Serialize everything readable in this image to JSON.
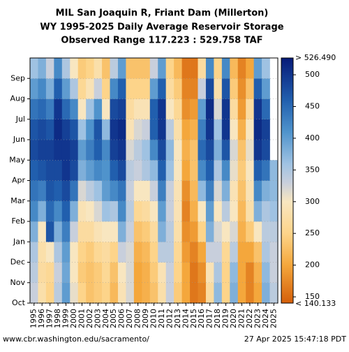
{
  "chart_data": {
    "type": "heatmap",
    "title": [
      "MIL San Joaquin R, Friant Dam (Millerton)",
      "WY 1995-2025 Daily Average Reservoir Storage",
      "Observed Range 117.223 : 529.758 TAF"
    ],
    "categories": [
      "1995",
      "1996",
      "1997",
      "1998",
      "1999",
      "2000",
      "2001",
      "2002",
      "2003",
      "2004",
      "2005",
      "2006",
      "2007",
      "2008",
      "2009",
      "2010",
      "2011",
      "2012",
      "2013",
      "2014",
      "2015",
      "2016",
      "2017",
      "2018",
      "2019",
      "2020",
      "2021",
      "2022",
      "2023",
      "2024",
      "2025"
    ],
    "months": [
      "Oct",
      "Nov",
      "Dec",
      "Jan",
      "Feb",
      "Mar",
      "Apr",
      "May",
      "Jun",
      "Jul",
      "Aug",
      "Sep"
    ],
    "values": [
      [
        330,
        340,
        350,
        380,
        420,
        440,
        460,
        480,
        470,
        440,
        400,
        360
      ],
      [
        280,
        270,
        280,
        300,
        380,
        430,
        470,
        490,
        480,
        450,
        420,
        380
      ],
      [
        250,
        260,
        300,
        470,
        450,
        470,
        480,
        490,
        470,
        430,
        380,
        330
      ],
      [
        340,
        330,
        350,
        380,
        420,
        460,
        480,
        500,
        510,
        500,
        460,
        420
      ],
      [
        400,
        390,
        400,
        430,
        460,
        480,
        500,
        500,
        490,
        450,
        400,
        350
      ],
      [
        310,
        300,
        300,
        330,
        380,
        440,
        480,
        490,
        470,
        420,
        350,
        300
      ],
      [
        250,
        240,
        250,
        270,
        290,
        320,
        380,
        400,
        360,
        300,
        260,
        240
      ],
      [
        230,
        230,
        240,
        270,
        300,
        340,
        400,
        430,
        410,
        360,
        290,
        250
      ],
      [
        240,
        240,
        260,
        290,
        320,
        360,
        420,
        460,
        470,
        410,
        330,
        280
      ],
      [
        250,
        260,
        270,
        300,
        360,
        400,
        410,
        420,
        370,
        300,
        250,
        230
      ],
      [
        220,
        230,
        250,
        300,
        350,
        420,
        460,
        490,
        500,
        480,
        420,
        340
      ],
      [
        290,
        300,
        330,
        380,
        420,
        440,
        480,
        500,
        510,
        490,
        460,
        400
      ],
      [
        320,
        320,
        320,
        330,
        340,
        330,
        340,
        320,
        290,
        270,
        250,
        230
      ],
      [
        200,
        200,
        210,
        230,
        260,
        300,
        330,
        340,
        320,
        290,
        250,
        230
      ],
      [
        210,
        210,
        220,
        240,
        270,
        300,
        350,
        360,
        330,
        290,
        250,
        230
      ],
      [
        230,
        240,
        250,
        270,
        300,
        330,
        370,
        420,
        460,
        460,
        400,
        330
      ],
      [
        280,
        290,
        340,
        380,
        400,
        430,
        460,
        480,
        500,
        500,
        460,
        400
      ],
      [
        330,
        330,
        340,
        340,
        330,
        330,
        360,
        370,
        340,
        300,
        270,
        250
      ],
      [
        240,
        250,
        260,
        280,
        290,
        290,
        300,
        300,
        280,
        260,
        240,
        220
      ],
      [
        200,
        200,
        190,
        180,
        170,
        180,
        200,
        210,
        200,
        180,
        170,
        160
      ],
      [
        160,
        160,
        170,
        190,
        210,
        220,
        230,
        230,
        210,
        190,
        170,
        160
      ],
      [
        170,
        180,
        200,
        250,
        300,
        370,
        420,
        450,
        430,
        400,
        330,
        270
      ],
      [
        270,
        290,
        330,
        380,
        400,
        430,
        460,
        480,
        500,
        510,
        480,
        420
      ],
      [
        370,
        350,
        330,
        320,
        300,
        320,
        350,
        380,
        360,
        320,
        280,
        250
      ],
      [
        250,
        250,
        260,
        300,
        340,
        380,
        420,
        470,
        500,
        500,
        470,
        420
      ],
      [
        380,
        370,
        340,
        320,
        300,
        290,
        310,
        320,
        300,
        270,
        240,
        220
      ],
      [
        200,
        200,
        200,
        210,
        220,
        230,
        240,
        230,
        210,
        190,
        180,
        170
      ],
      [
        170,
        170,
        200,
        240,
        280,
        290,
        300,
        310,
        300,
        270,
        230,
        200
      ],
      [
        200,
        210,
        230,
        300,
        380,
        420,
        460,
        500,
        510,
        500,
        460,
        400
      ],
      [
        380,
        370,
        350,
        340,
        350,
        380,
        440,
        480,
        490,
        450,
        400,
        360
      ],
      [
        340,
        330,
        330,
        340,
        360,
        370,
        370,
        null,
        null,
        null,
        null,
        null
      ]
    ],
    "clim": [
      140.133,
      526.49
    ],
    "cticks": [
      150,
      200,
      250,
      300,
      350,
      400,
      450,
      500
    ],
    "cmax_label": "> 526.490",
    "cmin_label": "< 140.133",
    "colorscale": [
      {
        "value": 140.133,
        "color": "#d45f0a"
      },
      {
        "value": 200,
        "color": "#f4a73c"
      },
      {
        "value": 250,
        "color": "#fdd48a"
      },
      {
        "value": 300,
        "color": "#f8e6c0"
      },
      {
        "value": 330,
        "color": "#c8cfdc"
      },
      {
        "value": 360,
        "color": "#9fc2e2"
      },
      {
        "value": 410,
        "color": "#4f93cc"
      },
      {
        "value": 460,
        "color": "#215fae"
      },
      {
        "value": 526.49,
        "color": "#061a78"
      }
    ],
    "source": "www.cbr.washington.edu/sacramento/",
    "timestamp": "27 Apr 2025 15:47:18 PDT"
  }
}
